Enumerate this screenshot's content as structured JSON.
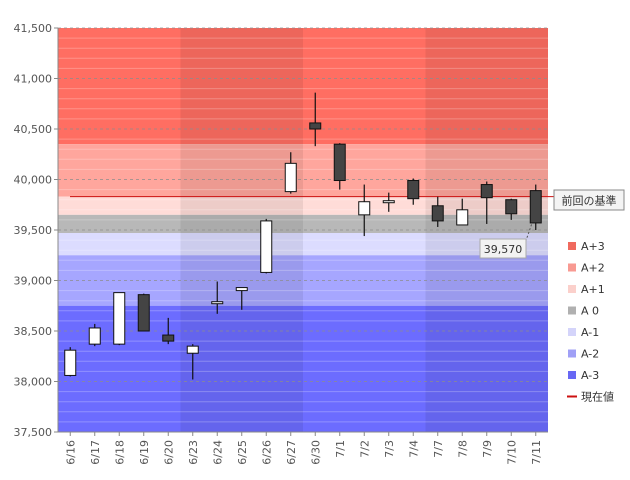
{
  "chart_data": {
    "type": "candlestick",
    "title": "",
    "xlabel": "",
    "ylabel": "",
    "ylim": [
      37500,
      41500
    ],
    "y_ticks": [
      37500,
      38000,
      38500,
      39000,
      39500,
      40000,
      40500,
      41000,
      41500
    ],
    "y_tick_labels": [
      "37,500",
      "38,000",
      "38,500",
      "39,000",
      "39,500",
      "40,000",
      "40,500",
      "41,000",
      "41,500"
    ],
    "categories": [
      "6/16",
      "6/17",
      "6/18",
      "6/19",
      "6/20",
      "6/23",
      "6/24",
      "6/25",
      "6/26",
      "6/27",
      "6/30",
      "7/1",
      "7/2",
      "7/3",
      "7/4",
      "7/7",
      "7/8",
      "7/9",
      "7/10",
      "7/11"
    ],
    "candles": [
      {
        "open": 38060,
        "high": 38340,
        "low": 38050,
        "close": 38310
      },
      {
        "open": 38370,
        "high": 38570,
        "low": 38350,
        "close": 38530
      },
      {
        "open": 38370,
        "high": 38880,
        "low": 38360,
        "close": 38880
      },
      {
        "open": 38860,
        "high": 38870,
        "low": 38500,
        "close": 38500
      },
      {
        "open": 38460,
        "high": 38630,
        "low": 38370,
        "close": 38400
      },
      {
        "open": 38280,
        "high": 38370,
        "low": 38020,
        "close": 38350
      },
      {
        "open": 38780,
        "high": 38990,
        "low": 38670,
        "close": 38790
      },
      {
        "open": 38900,
        "high": 38930,
        "low": 38710,
        "close": 38930
      },
      {
        "open": 39080,
        "high": 39610,
        "low": 39070,
        "close": 39590
      },
      {
        "open": 39880,
        "high": 40270,
        "low": 39860,
        "close": 40160
      },
      {
        "open": 40560,
        "high": 40860,
        "low": 40330,
        "close": 40500
      },
      {
        "open": 40350,
        "high": 40360,
        "low": 39900,
        "close": 39990
      },
      {
        "open": 39650,
        "high": 39950,
        "low": 39440,
        "close": 39780
      },
      {
        "open": 39780,
        "high": 39870,
        "low": 39680,
        "close": 39790
      },
      {
        "open": 39990,
        "high": 40010,
        "low": 39750,
        "close": 39810
      },
      {
        "open": 39740,
        "high": 39830,
        "low": 39530,
        "close": 39590
      },
      {
        "open": 39550,
        "high": 39810,
        "low": 39550,
        "close": 39700
      },
      {
        "open": 39950,
        "high": 39980,
        "low": 39560,
        "close": 39820
      },
      {
        "open": 39800,
        "high": 39810,
        "low": 39600,
        "close": 39660
      },
      {
        "open": 39890,
        "high": 39950,
        "low": 39500,
        "close": 39570
      }
    ],
    "zones": [
      {
        "name": "A+3",
        "from": 40350,
        "to": 41500,
        "color": "#ff6e62"
      },
      {
        "name": "A+2",
        "from": 39830,
        "to": 40350,
        "color": "#ffa69d"
      },
      {
        "name": "A+1",
        "from": 39650,
        "to": 39830,
        "color": "#ffdcd8"
      },
      {
        "name": "A 0",
        "from": 39470,
        "to": 39650,
        "color": "#b8b8b8"
      },
      {
        "name": "A-1",
        "from": 39250,
        "to": 39470,
        "color": "#dcdcff"
      },
      {
        "name": "A-2",
        "from": 38750,
        "to": 39250,
        "color": "#a6a6ff"
      },
      {
        "name": "A-3",
        "from": 37500,
        "to": 38750,
        "color": "#6c6cff"
      }
    ],
    "reference_line": {
      "value": 39830,
      "color": "#cc1111"
    },
    "legend": [
      {
        "label": "A+3",
        "color": "#f06a5e",
        "kind": "square"
      },
      {
        "label": "A+2",
        "color": "#f89a92",
        "kind": "square"
      },
      {
        "label": "A+1",
        "color": "#fbd0cb",
        "kind": "square"
      },
      {
        "label": "A 0",
        "color": "#b0b0b0",
        "kind": "square"
      },
      {
        "label": "A-1",
        "color": "#d4d4fa",
        "kind": "square"
      },
      {
        "label": "A-2",
        "color": "#a0a0f6",
        "kind": "square"
      },
      {
        "label": "A-3",
        "color": "#6868f4",
        "kind": "square"
      },
      {
        "label": "現在値",
        "color": "#cc1111",
        "kind": "line"
      }
    ],
    "legend_position": "right",
    "annotations": {
      "reference_label": "前回の基準",
      "current_value_label": "39,570",
      "current_value": 39570
    },
    "colors": {
      "up_fill": "#ffffff",
      "down_fill": "#444444",
      "candle_outline": "#111111"
    }
  }
}
